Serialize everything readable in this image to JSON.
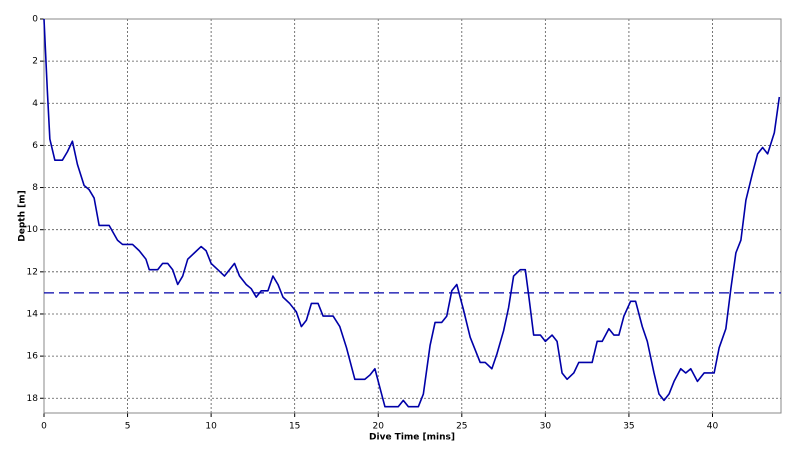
{
  "chart_data": {
    "type": "line",
    "x_label": "Dive Time [mins]",
    "y_label": "Depth [m]",
    "x": [
      0,
      0.2,
      0.35,
      0.65,
      1.1,
      1.4,
      1.7,
      2.0,
      2.4,
      2.7,
      3.0,
      3.3,
      3.9,
      4.4,
      4.7,
      5.3,
      5.7,
      6.1,
      6.3,
      6.8,
      7.1,
      7.4,
      7.7,
      8.0,
      8.3,
      8.6,
      9.0,
      9.4,
      9.7,
      10.0,
      10.4,
      10.8,
      11.1,
      11.4,
      11.7,
      12.1,
      12.4,
      12.7,
      13.0,
      13.4,
      13.7,
      14.0,
      14.3,
      14.7,
      15.1,
      15.4,
      15.7,
      16.0,
      16.4,
      16.7,
      17.3,
      17.7,
      18.1,
      18.4,
      18.6,
      19.2,
      19.5,
      19.8,
      20.1,
      20.4,
      21.2,
      21.5,
      21.8,
      22.4,
      22.7,
      23.1,
      23.4,
      23.8,
      24.1,
      24.4,
      24.7,
      25.1,
      25.5,
      25.8,
      26.1,
      26.4,
      26.8,
      27.1,
      27.5,
      27.8,
      28.1,
      28.5,
      28.8,
      29.0,
      29.3,
      29.7,
      30.0,
      30.4,
      30.7,
      31.0,
      31.3,
      31.7,
      32.0,
      32.4,
      32.8,
      33.1,
      33.4,
      33.8,
      34.1,
      34.4,
      34.7,
      35.1,
      35.4,
      35.8,
      36.1,
      36.5,
      36.8,
      37.1,
      37.4,
      37.7,
      38.1,
      38.4,
      38.7,
      39.1,
      39.5,
      40.1,
      40.4,
      40.8,
      41.1,
      41.4,
      41.7,
      42.0,
      42.4,
      42.7,
      43.0,
      43.3,
      43.7,
      44.0
    ],
    "values": [
      0,
      3.4,
      5.7,
      6.7,
      6.7,
      6.3,
      5.8,
      6.9,
      7.9,
      8.1,
      8.5,
      9.8,
      9.8,
      10.5,
      10.7,
      10.7,
      11.0,
      11.4,
      11.9,
      11.9,
      11.6,
      11.6,
      11.9,
      12.6,
      12.2,
      11.4,
      11.1,
      10.8,
      11.0,
      11.6,
      11.9,
      12.2,
      11.9,
      11.6,
      12.2,
      12.6,
      12.8,
      13.2,
      12.9,
      12.9,
      12.2,
      12.6,
      13.2,
      13.5,
      13.9,
      14.6,
      14.3,
      13.5,
      13.5,
      14.1,
      14.1,
      14.6,
      15.6,
      16.5,
      17.1,
      17.1,
      16.9,
      16.6,
      17.5,
      18.4,
      18.4,
      18.1,
      18.4,
      18.4,
      17.8,
      15.5,
      14.4,
      14.4,
      14.1,
      12.9,
      12.6,
      13.8,
      15.1,
      15.7,
      16.3,
      16.3,
      16.6,
      15.9,
      14.8,
      13.7,
      12.2,
      11.9,
      11.9,
      13.1,
      15.0,
      15.0,
      15.3,
      15.0,
      15.3,
      16.8,
      17.1,
      16.8,
      16.3,
      16.3,
      16.3,
      15.3,
      15.3,
      14.7,
      15.0,
      15.0,
      14.1,
      13.4,
      13.4,
      14.6,
      15.3,
      16.8,
      17.8,
      18.1,
      17.8,
      17.2,
      16.6,
      16.8,
      16.6,
      17.2,
      16.8,
      16.8,
      15.6,
      14.7,
      12.8,
      11.1,
      10.5,
      8.6,
      7.3,
      6.4,
      6.1,
      6.4,
      5.4,
      3.7
    ],
    "color": "#0000a8",
    "reference_line": 13,
    "xlim": [
      0,
      44.1
    ],
    "ylim": [
      0,
      18.7
    ],
    "y_inverted": true,
    "xticks": [
      0,
      5,
      10,
      15,
      20,
      25,
      30,
      35,
      40
    ],
    "yticks": [
      0,
      2,
      4,
      6,
      8,
      10,
      12,
      14,
      16,
      18
    ],
    "grid": true
  }
}
